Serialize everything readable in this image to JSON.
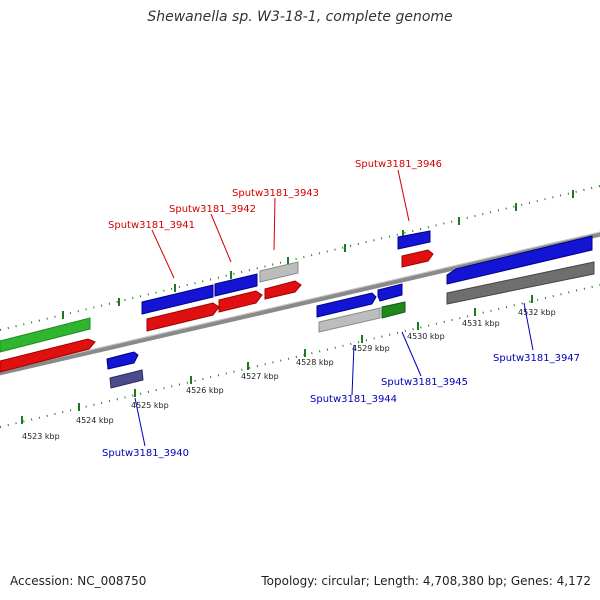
{
  "title": "Shewanella sp. W3-18-1, complete genome",
  "footer": {
    "accession": "Accession: NC_008750",
    "topology": "Topology: circular; Length: 4,708,380 bp; Genes: 4,172"
  },
  "colors": {
    "backbone": "#8a8a8a",
    "tick": "#1f7a1f",
    "top_label": "#d40000",
    "bottom_label": "#0000bb",
    "cds_blue": "#1414d4",
    "cds_red": "#e01010",
    "cds_green": "#2fb52f",
    "cds_gray": "#bdbdbd",
    "cds_darkgray": "#6e6e6e",
    "cds_navy": "#4a4a8c",
    "cds_darkgreen": "#1d8a1d"
  },
  "scale": {
    "labels": [
      "4523 kbp",
      "4524 kbp",
      "4525 kbp",
      "4526 kbp",
      "4527 kbp",
      "4528 kbp",
      "4529 kbp",
      "4530 kbp",
      "4531 kbp",
      "4532 kbp"
    ]
  },
  "gene_labels": {
    "top": [
      "Sputw3181_3941",
      "Sputw3181_3942",
      "Sputw3181_3943",
      "Sputw3181_3946"
    ],
    "bottom": [
      "Sputw3181_3940",
      "Sputw3181_3944",
      "Sputw3181_3945",
      "Sputw3181_3947"
    ]
  }
}
